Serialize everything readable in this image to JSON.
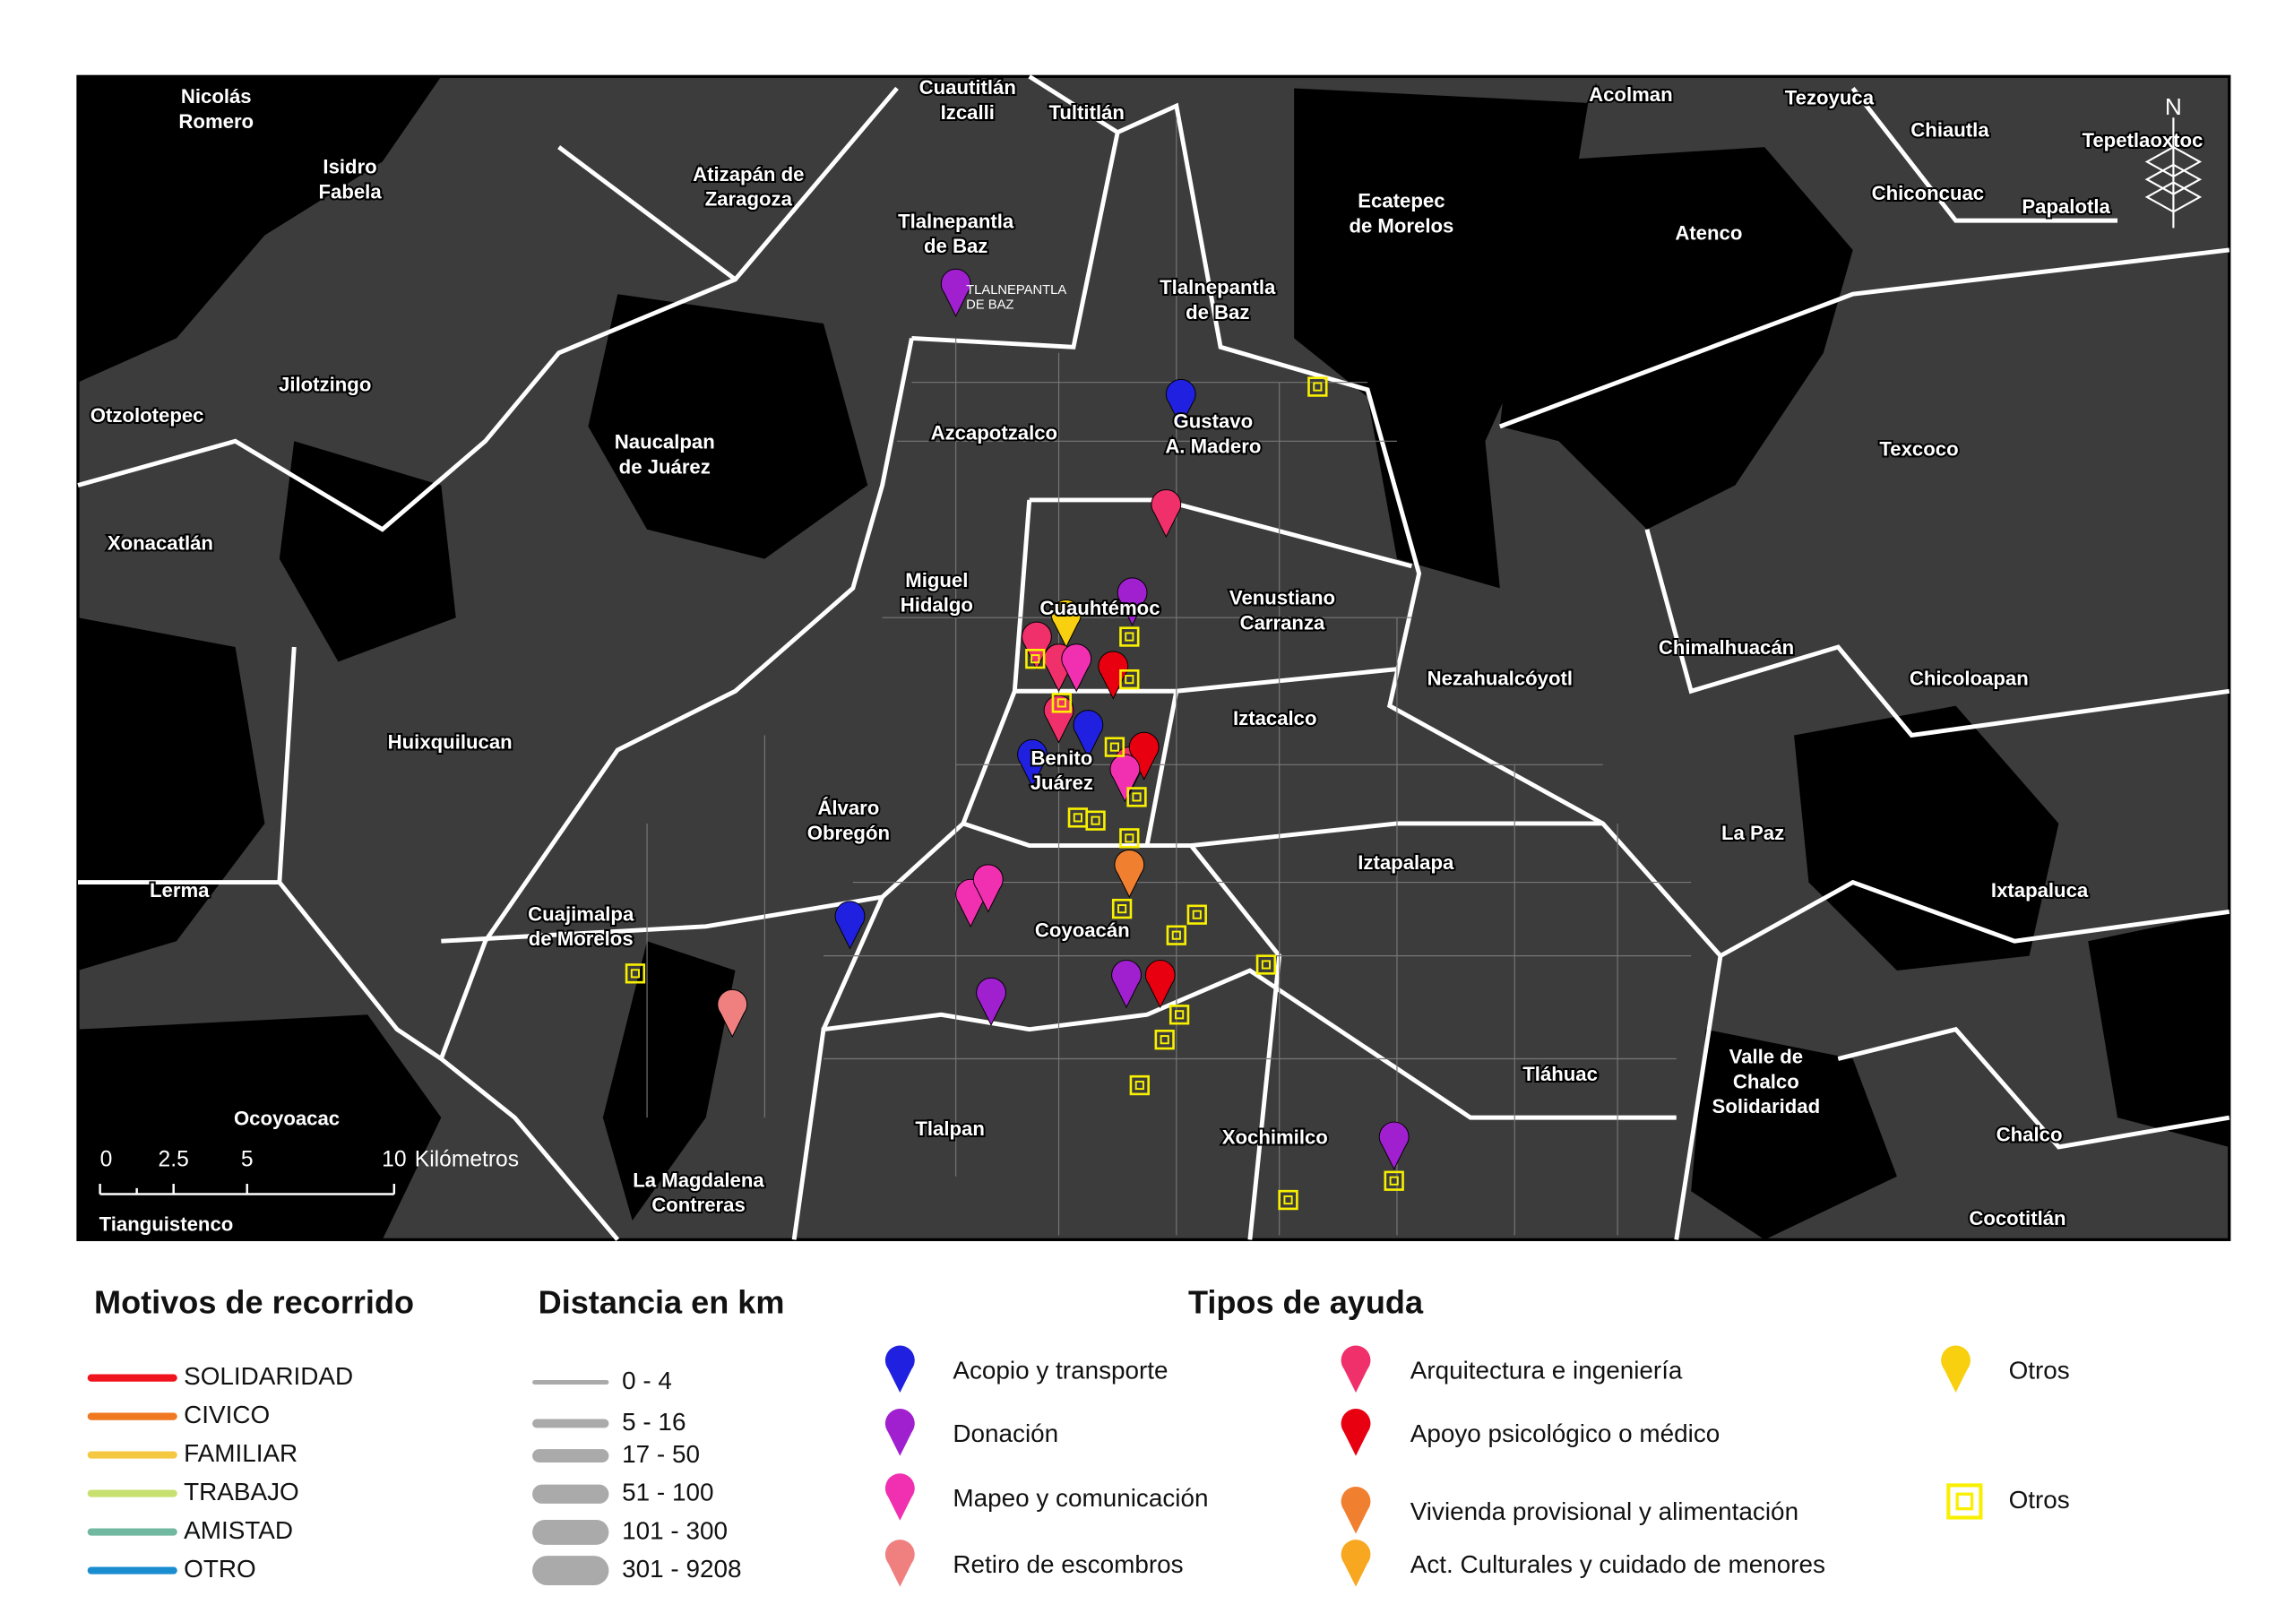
{
  "map": {
    "places": [
      {
        "lines": [
          "Nicolás",
          "Romero"
        ]
      },
      {
        "lines": [
          "Cuautitlán",
          "Izcalli"
        ]
      },
      {
        "lines": [
          "Tultitlán"
        ]
      },
      {
        "lines": [
          "Acolman"
        ]
      },
      {
        "lines": [
          "Tezoyuca"
        ]
      },
      {
        "lines": [
          "Chiautla"
        ]
      },
      {
        "lines": [
          "Tepetlaoxtoc"
        ]
      },
      {
        "lines": [
          "Isidro",
          "Fabela"
        ]
      },
      {
        "lines": [
          "Atizapán de",
          "Zaragoza"
        ]
      },
      {
        "lines": [
          "Chiconcuac"
        ]
      },
      {
        "lines": [
          "Papalotla"
        ]
      },
      {
        "lines": [
          "Ecatepec",
          "de Morelos"
        ]
      },
      {
        "lines": [
          "Atenco"
        ]
      },
      {
        "lines": [
          "Tlalnepantla",
          "de Baz"
        ]
      },
      {
        "lines": [
          "Tlalnepantla",
          "de Baz"
        ]
      },
      {
        "lines": [
          "Jilotzingo"
        ]
      },
      {
        "lines": [
          "Otzolotepec"
        ]
      },
      {
        "lines": [
          "Azcapotzalco"
        ]
      },
      {
        "lines": [
          "Gustavo",
          "A. Madero"
        ]
      },
      {
        "lines": [
          "Naucalpan",
          "de Juárez"
        ]
      },
      {
        "lines": [
          "Texcoco"
        ]
      },
      {
        "lines": [
          "Xonacatlán"
        ]
      },
      {
        "lines": [
          "Miguel",
          "Hidalgo"
        ]
      },
      {
        "lines": [
          "Cuauhtémoc"
        ]
      },
      {
        "lines": [
          "Venustiano",
          "Carranza"
        ]
      },
      {
        "lines": [
          "Chimalhuacán"
        ]
      },
      {
        "lines": [
          "Nezahualcóyotl"
        ]
      },
      {
        "lines": [
          "Chicoloapan"
        ]
      },
      {
        "lines": [
          "Iztacalco"
        ]
      },
      {
        "lines": [
          "Huixquilucan"
        ]
      },
      {
        "lines": [
          "Benito",
          "Juárez"
        ]
      },
      {
        "lines": [
          "Álvaro",
          "Obregón"
        ]
      },
      {
        "lines": [
          "La Paz"
        ]
      },
      {
        "lines": [
          "Iztapalapa"
        ]
      },
      {
        "lines": [
          "Lerma"
        ]
      },
      {
        "lines": [
          "Ixtapaluca"
        ]
      },
      {
        "lines": [
          "Cuajimalpa",
          "de Morelos"
        ]
      },
      {
        "lines": [
          "Coyoacán"
        ]
      },
      {
        "lines": [
          "Tláhuac"
        ]
      },
      {
        "lines": [
          "Valle de",
          "Chalco",
          "Solidaridad"
        ]
      },
      {
        "lines": [
          "Ocoyoacac"
        ]
      },
      {
        "lines": [
          "Tlalpan"
        ]
      },
      {
        "lines": [
          "Xochimilco"
        ]
      },
      {
        "lines": [
          "Chalco"
        ]
      },
      {
        "lines": [
          "La Magdalena",
          "Contreras"
        ]
      },
      {
        "lines": [
          "Tianguistenco"
        ]
      },
      {
        "lines": [
          "Cocotitlán"
        ]
      }
    ],
    "point_label": {
      "lines": [
        "TLALNEPANTLA",
        "DE BAZ"
      ]
    },
    "north": "N",
    "scale_bar": {
      "ticks": [
        "0",
        "2.5",
        "5",
        "10"
      ],
      "unit": "Kilómetros"
    }
  },
  "legend_motivos": {
    "title": "Motivos de recorrido",
    "items": [
      {
        "label": "SOLIDARIDAD",
        "color": "#f0141e"
      },
      {
        "label": "CIVICO",
        "color": "#f07820"
      },
      {
        "label": "FAMILIAR",
        "color": "#f5c842"
      },
      {
        "label": "TRABAJO",
        "color": "#c8e070"
      },
      {
        "label": "AMISTAD",
        "color": "#70b8a0"
      },
      {
        "label": "OTRO",
        "color": "#1a8cd0"
      }
    ]
  },
  "legend_distancia": {
    "title": "Distancia en km",
    "items": [
      "0 - 4",
      "5 - 16",
      "17 - 50",
      "51 - 100",
      "101 - 300",
      "301 - 9208"
    ]
  },
  "legend_ayuda": {
    "title": "Tipos de ayuda",
    "items": [
      {
        "label": "Acopio y transporte",
        "color": "#2020e0"
      },
      {
        "label": "Donación",
        "color": "#a020d0"
      },
      {
        "label": "Mapeo y comunicación",
        "color": "#f030b0"
      },
      {
        "label": "Retiro de escombros",
        "color": "#f08080"
      },
      {
        "label": "Arquitectura e ingeniería",
        "color": "#f0306a"
      },
      {
        "label": "Apoyo psicológico o médico",
        "color": "#e80010"
      },
      {
        "label": "Vivienda provisional y alimentación",
        "color": "#f08030"
      },
      {
        "label": "Act. Culturales y cuidado de menores",
        "color": "#f8a820"
      },
      {
        "label": "Otros",
        "color": "#f8d010"
      },
      {
        "label": "Otros",
        "color": "#f8f000"
      }
    ]
  }
}
